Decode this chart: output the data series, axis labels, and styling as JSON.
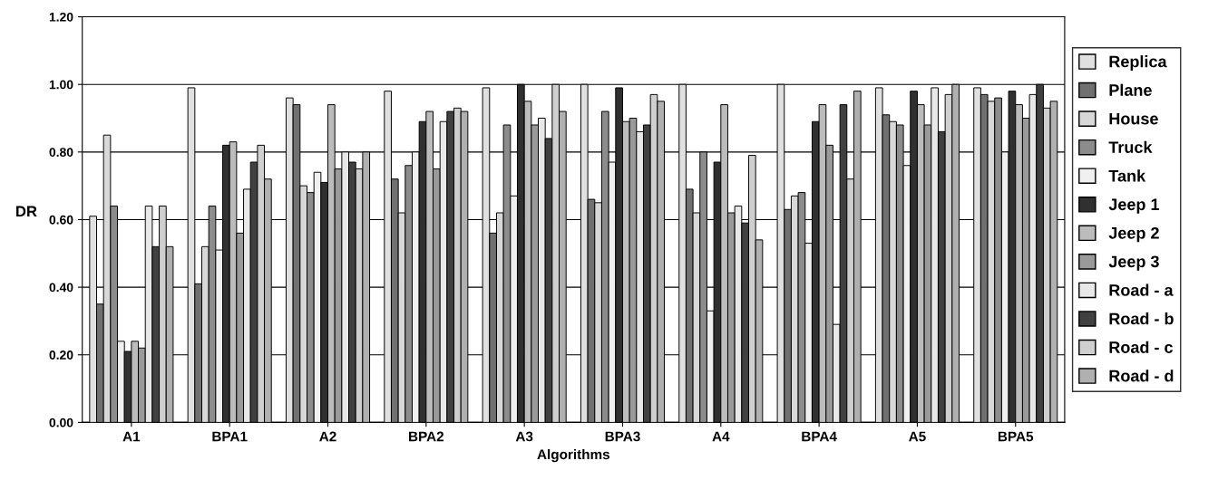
{
  "chart_data": {
    "type": "bar",
    "xlabel": "Algorithms",
    "ylabel": "DR",
    "categories": [
      "A1",
      "BPA1",
      "A2",
      "BPA2",
      "A3",
      "BPA3",
      "A4",
      "BPA4",
      "A5",
      "BPA5"
    ],
    "series": [
      {
        "name": "Replica",
        "color": "#e0e0e0",
        "values": [
          0.61,
          0.99,
          0.96,
          0.98,
          0.99,
          1.0,
          1.0,
          1.0,
          0.99,
          0.99
        ]
      },
      {
        "name": "Plane",
        "color": "#707070",
        "values": [
          0.35,
          0.41,
          0.94,
          0.72,
          0.56,
          0.66,
          0.69,
          0.63,
          0.91,
          0.97
        ]
      },
      {
        "name": "House",
        "color": "#d8d8d8",
        "values": [
          0.85,
          0.52,
          0.7,
          0.62,
          0.62,
          0.65,
          0.62,
          0.67,
          0.89,
          0.95
        ]
      },
      {
        "name": "Truck",
        "color": "#8c8c8c",
        "values": [
          0.64,
          0.64,
          0.68,
          0.76,
          0.88,
          0.92,
          0.8,
          0.68,
          0.88,
          0.96
        ]
      },
      {
        "name": "Tank",
        "color": "#f0f0f0",
        "values": [
          0.24,
          0.51,
          0.74,
          0.8,
          0.67,
          0.77,
          0.33,
          0.53,
          0.76,
          0.8
        ]
      },
      {
        "name": "Jeep 1",
        "color": "#303030",
        "values": [
          0.21,
          0.82,
          0.71,
          0.89,
          1.0,
          0.99,
          0.77,
          0.89,
          0.98,
          0.98
        ]
      },
      {
        "name": "Jeep 2",
        "color": "#bcbcbc",
        "values": [
          0.24,
          0.83,
          0.94,
          0.92,
          0.95,
          0.89,
          0.94,
          0.94,
          0.94,
          0.94
        ]
      },
      {
        "name": "Jeep 3",
        "color": "#9a9a9a",
        "values": [
          0.22,
          0.56,
          0.75,
          0.75,
          0.88,
          0.9,
          0.62,
          0.82,
          0.88,
          0.9
        ]
      },
      {
        "name": "Road - a",
        "color": "#e8e8e8",
        "values": [
          0.64,
          0.69,
          0.8,
          0.89,
          0.9,
          0.86,
          0.64,
          0.29,
          0.99,
          0.97
        ]
      },
      {
        "name": "Road - b",
        "color": "#404040",
        "values": [
          0.52,
          0.77,
          0.77,
          0.92,
          0.84,
          0.88,
          0.59,
          0.94,
          0.86,
          1.0
        ]
      },
      {
        "name": "Road - c",
        "color": "#cfcfcf",
        "values": [
          0.64,
          0.82,
          0.75,
          0.93,
          1.0,
          0.97,
          0.79,
          0.72,
          0.97,
          0.93
        ]
      },
      {
        "name": "Road - d",
        "color": "#b0b0b0",
        "values": [
          0.52,
          0.72,
          0.8,
          0.92,
          0.92,
          0.95,
          0.54,
          0.98,
          1.0,
          0.95
        ]
      }
    ],
    "ylim": [
      0,
      1.2
    ],
    "yticks": [
      {
        "value": 0,
        "label": "0.00"
      },
      {
        "value": 0.2,
        "label": "0.20"
      },
      {
        "value": 0.4,
        "label": "0.40"
      },
      {
        "value": 0.6,
        "label": "0.60"
      },
      {
        "value": 0.8,
        "label": "0.80"
      },
      {
        "value": 1.0,
        "label": "1.00"
      },
      {
        "value": 1.2,
        "label": "1.20"
      }
    ],
    "grid": "y",
    "legend": "right"
  }
}
